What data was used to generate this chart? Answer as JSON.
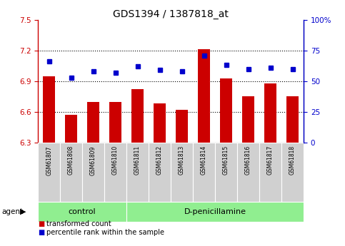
{
  "title": "GDS1394 / 1387818_at",
  "samples": [
    "GSM61807",
    "GSM61808",
    "GSM61809",
    "GSM61810",
    "GSM61811",
    "GSM61812",
    "GSM61813",
    "GSM61814",
    "GSM61815",
    "GSM61816",
    "GSM61817",
    "GSM61818"
  ],
  "transformed_count": [
    6.95,
    6.57,
    6.7,
    6.7,
    6.82,
    6.68,
    6.62,
    7.21,
    6.93,
    6.75,
    6.88,
    6.75
  ],
  "percentile_rank": [
    66,
    53,
    58,
    57,
    62,
    59,
    58,
    71,
    63,
    60,
    61,
    60
  ],
  "groups": [
    "control",
    "control",
    "control",
    "control",
    "D-penicillamine",
    "D-penicillamine",
    "D-penicillamine",
    "D-penicillamine",
    "D-penicillamine",
    "D-penicillamine",
    "D-penicillamine",
    "D-penicillamine"
  ],
  "n_control": 4,
  "ylim_left": [
    6.3,
    7.5
  ],
  "ylim_right": [
    0,
    100
  ],
  "yticks_left": [
    6.3,
    6.6,
    6.9,
    7.2,
    7.5
  ],
  "yticks_right": [
    0,
    25,
    50,
    75,
    100
  ],
  "ytick_labels_right": [
    "0",
    "25",
    "50",
    "75",
    "100%"
  ],
  "bar_color": "#cc0000",
  "dot_color": "#0000cc",
  "bar_bottom": 6.3,
  "group_color": "#90ee90",
  "sample_bg_color": "#d0d0d0",
  "title_fontsize": 10,
  "tick_fontsize": 7.5,
  "sample_fontsize": 5.5,
  "group_fontsize": 8,
  "legend_fontsize": 7
}
